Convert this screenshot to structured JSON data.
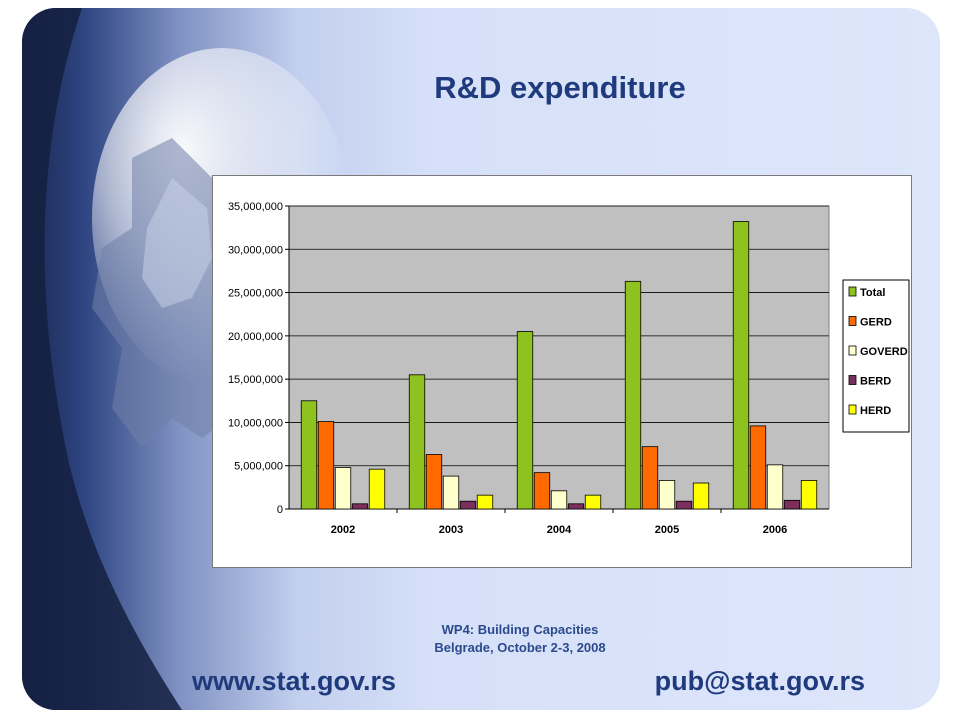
{
  "slide": {
    "title": "R&D expenditure",
    "footer_line1": "WP4: Building Capacities",
    "footer_line2": "Belgrade, October 2-3, 2008",
    "url_left": "www.stat.gov.rs",
    "url_right": "pub@stat.gov.rs"
  },
  "chart_data": {
    "type": "bar",
    "categories": [
      "2002",
      "2003",
      "2004",
      "2005",
      "2006"
    ],
    "series": [
      {
        "name": "Total",
        "color": "#8dc21f",
        "values": [
          12500000,
          15500000,
          20500000,
          26300000,
          33200000
        ]
      },
      {
        "name": "GERD",
        "color": "#ff6a00",
        "values": [
          10100000,
          6300000,
          4200000,
          7200000,
          9600000
        ]
      },
      {
        "name": "GOVERD",
        "color": "#ffffcc",
        "values": [
          4800000,
          3800000,
          2100000,
          3300000,
          5100000
        ]
      },
      {
        "name": "BERD",
        "color": "#7b2f5c",
        "values": [
          600000,
          900000,
          600000,
          900000,
          1000000
        ]
      },
      {
        "name": "HERD",
        "color": "#ffff00",
        "values": [
          4600000,
          1600000,
          1600000,
          3000000,
          3300000
        ]
      }
    ],
    "ylim": [
      0,
      35000000
    ],
    "yticks": [
      0,
      5000000,
      10000000,
      15000000,
      20000000,
      25000000,
      30000000,
      35000000
    ],
    "ytick_labels": [
      "0",
      "5,000,000",
      "10,000,000",
      "15,000,000",
      "20,000,000",
      "25,000,000",
      "30,000,000",
      "35,000,000"
    ],
    "grid": true,
    "plot_background": "#c0c0c0",
    "legend_position": "right"
  }
}
